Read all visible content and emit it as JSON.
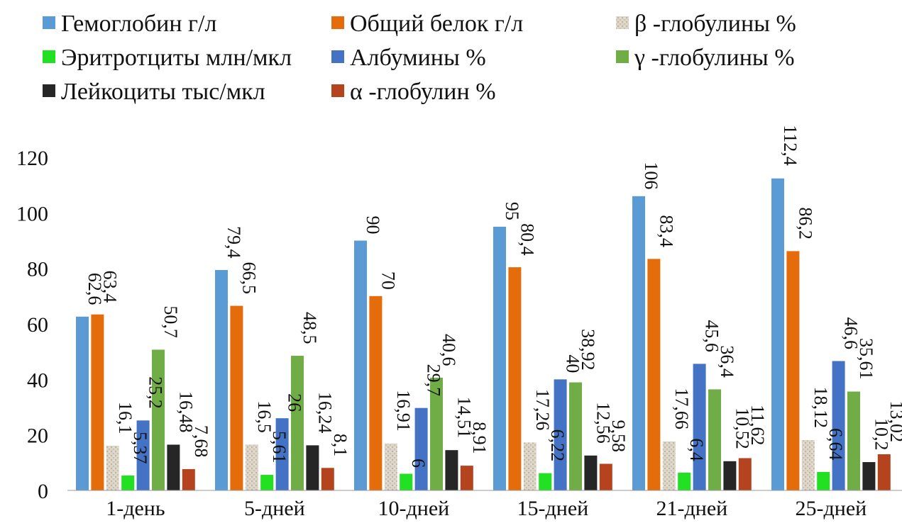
{
  "chart_data": {
    "type": "bar",
    "categories": [
      "1-день",
      "5-дней",
      "10-дней",
      "15-дней",
      "21-дней",
      "25-дней"
    ],
    "ylim": [
      0,
      120
    ],
    "yticks": [
      0,
      20,
      40,
      60,
      80,
      100,
      120
    ],
    "title": "",
    "xlabel": "",
    "ylabel": "",
    "grid": false,
    "legend_position": "top",
    "series": [
      {
        "name": "Гемоглобин  г/л",
        "color": "#5b9bd5",
        "values": [
          62.6,
          79.4,
          90,
          95,
          106,
          112.4
        ],
        "labels": [
          "62,6",
          "79,4",
          "90",
          "95",
          "106",
          "112,4"
        ]
      },
      {
        "name": "Общий белок г/л",
        "color": "#e46c0a",
        "values": [
          63.4,
          66.5,
          70,
          80.4,
          83.4,
          86.2
        ],
        "labels": [
          "63,4",
          "66,5",
          "70",
          "80,4",
          "83,4",
          "86,2"
        ]
      },
      {
        "name": "β -глобулины %",
        "color": "#d9d3c4",
        "pattern": "texture",
        "values": [
          16.1,
          16.5,
          16.91,
          17.26,
          17.66,
          18.12
        ],
        "labels": [
          "16,1",
          "16,5",
          "16,91",
          "17,26",
          "17,66",
          "18,12"
        ]
      },
      {
        "name": "Эритротциты млн/мкл",
        "color": "#22e022",
        "values": [
          5.37,
          5.61,
          6,
          6.22,
          6.4,
          6.64
        ],
        "labels": [
          "5,37",
          "5,61",
          "6",
          "6,22",
          "6,4",
          "6,64"
        ]
      },
      {
        "name": "Албумины %",
        "color": "#4472c4",
        "values": [
          25.2,
          26,
          29.7,
          40,
          45.6,
          46.6
        ],
        "labels": [
          "25,2",
          "26",
          "29,7",
          "40",
          "45,6",
          "46,6"
        ]
      },
      {
        "name": "γ -глобулины %",
        "color": "#70ad47",
        "values": [
          50.7,
          48.5,
          40.6,
          38.92,
          36.4,
          35.61
        ],
        "labels": [
          "50,7",
          "48,5",
          "40,6",
          "38,92",
          "36,4",
          "35,61"
        ]
      },
      {
        "name": "Лейкоциты тыс/мкл",
        "color": "#262626",
        "values": [
          16.48,
          16.24,
          14.51,
          12.56,
          10.52,
          10.2
        ],
        "labels": [
          "16,48",
          "16,24",
          "14,51",
          "12,56",
          "10,52",
          "10,2"
        ]
      },
      {
        "name": "α -глобулин %",
        "color": "#b5431d",
        "values": [
          7.68,
          8.1,
          8.91,
          9.58,
          11.62,
          13.02
        ],
        "labels": [
          "7,68",
          "8,1",
          "8,91",
          "9,58",
          "11,62",
          "13,02"
        ]
      }
    ],
    "legend_layout": [
      [
        "Гемоглобин  г/л",
        "Общий белок г/л",
        "β -глобулины %"
      ],
      [
        "Эритротциты млн/мкл",
        "Албумины %",
        "γ -глобулины %"
      ],
      [
        "Лейкоциты тыс/мкл",
        "α -глобулин %"
      ]
    ]
  }
}
